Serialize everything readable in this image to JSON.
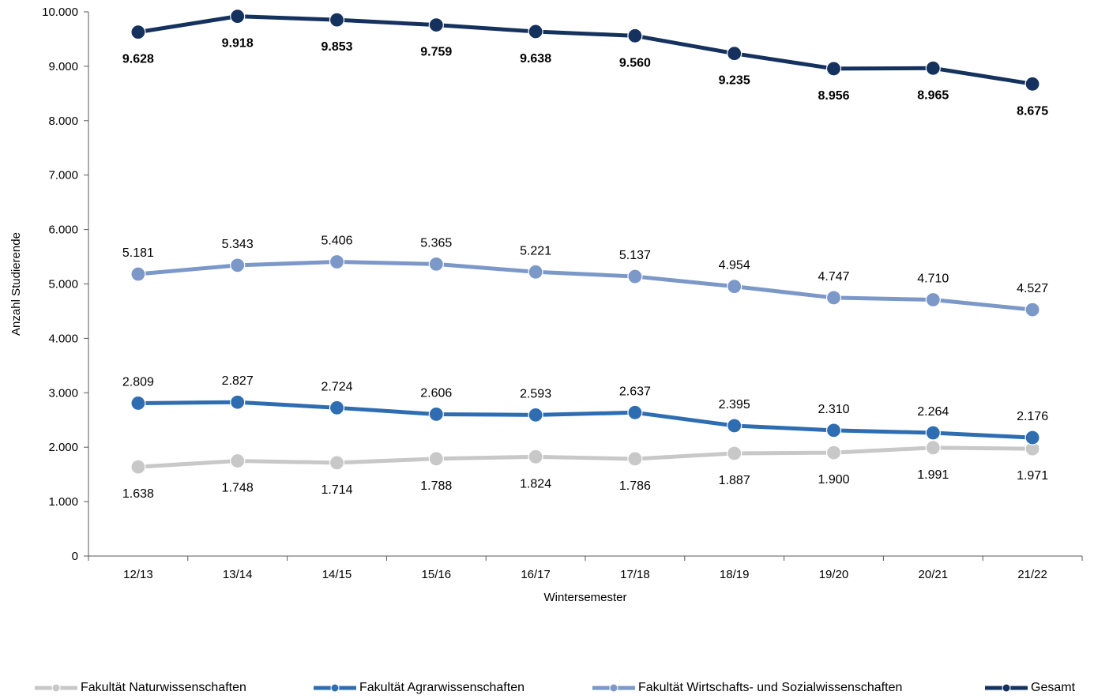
{
  "chart_data": {
    "type": "line",
    "title": "",
    "xlabel": "Wintersemester",
    "ylabel": "Anzahl Studierende",
    "ylim": [
      0,
      10000
    ],
    "yticks": [
      0,
      1000,
      2000,
      3000,
      4000,
      5000,
      6000,
      7000,
      8000,
      9000,
      10000
    ],
    "ytick_labels": [
      "0",
      "1.000",
      "2.000",
      "3.000",
      "4.000",
      "5.000",
      "6.000",
      "7.000",
      "8.000",
      "9.000",
      "10.000"
    ],
    "categories": [
      "12/13",
      "13/14",
      "14/15",
      "15/16",
      "16/17",
      "17/18",
      "18/19",
      "19/20",
      "20/21",
      "21/22"
    ],
    "grid": false,
    "legend_position": "bottom",
    "series": [
      {
        "name": "Fakultät Naturwissenschaften",
        "color": "#c8c8c8",
        "values": [
          1638,
          1748,
          1714,
          1788,
          1824,
          1786,
          1887,
          1900,
          1991,
          1971
        ],
        "labels": [
          "1.638",
          "1.748",
          "1.714",
          "1.788",
          "1.824",
          "1.786",
          "1.887",
          "1.900",
          "1.991",
          "1.971"
        ],
        "label_position": "below",
        "bold": false
      },
      {
        "name": "Fakultät Agrarwissenschaften",
        "color": "#2e6db1",
        "values": [
          2809,
          2827,
          2724,
          2606,
          2593,
          2637,
          2395,
          2310,
          2264,
          2176
        ],
        "labels": [
          "2.809",
          "2.827",
          "2.724",
          "2.606",
          "2.593",
          "2.637",
          "2.395",
          "2.310",
          "2.264",
          "2.176"
        ],
        "label_position": "above",
        "bold": false
      },
      {
        "name": "Fakultät Wirtschafts- und Sozialwissenschaften",
        "color": "#7b98c9",
        "values": [
          5181,
          5343,
          5406,
          5365,
          5221,
          5137,
          4954,
          4747,
          4710,
          4527
        ],
        "labels": [
          "5.181",
          "5.343",
          "5.406",
          "5.365",
          "5.221",
          "5.137",
          "4.954",
          "4.747",
          "4.710",
          "4.527"
        ],
        "label_position": "above",
        "bold": false
      },
      {
        "name": "Gesamt",
        "color": "#15325e",
        "values": [
          9628,
          9918,
          9853,
          9759,
          9638,
          9560,
          9235,
          8956,
          8965,
          8675
        ],
        "labels": [
          "9.628",
          "9.918",
          "9.853",
          "9.759",
          "9.638",
          "9.560",
          "9.235",
          "8.956",
          "8.965",
          "8.675"
        ],
        "label_position": "below",
        "bold": true
      }
    ]
  }
}
